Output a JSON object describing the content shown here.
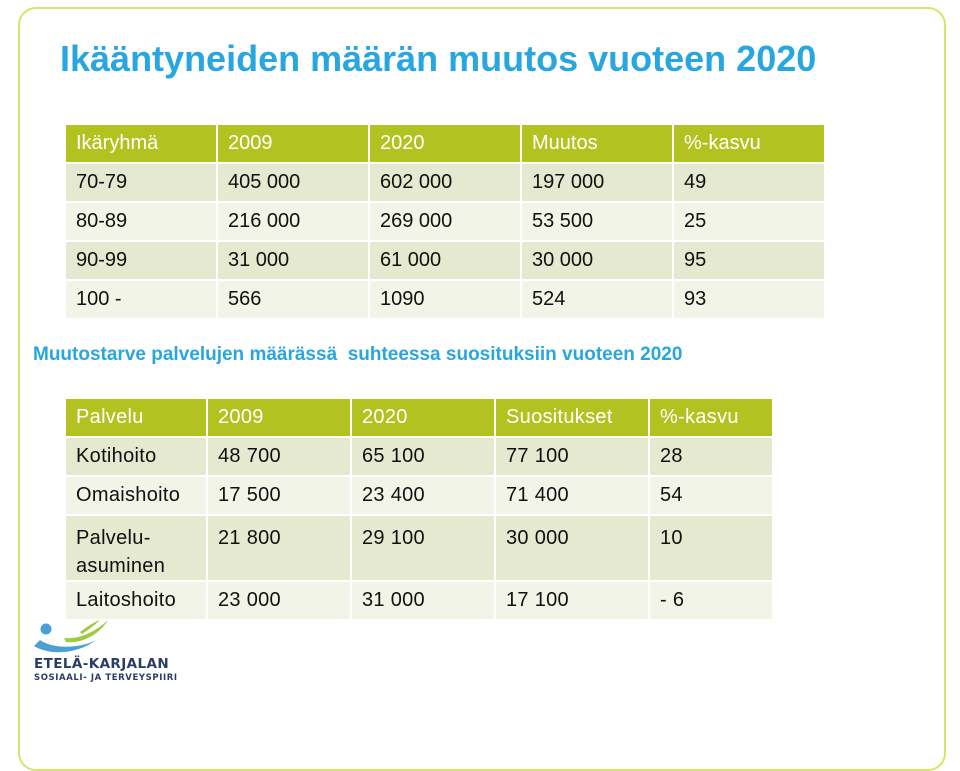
{
  "title": "Ikääntyneiden määrän muutos vuoteen 2020",
  "table1": {
    "headers": [
      "Ikäryhmä",
      "2009",
      "2020",
      "Muutos",
      "%-kasvu"
    ],
    "rows": [
      [
        "70-79",
        "405 000",
        "602 000",
        "197 000",
        "49"
      ],
      [
        "80-89",
        "216 000",
        "269 000",
        "53 500",
        "25"
      ],
      [
        "90-99",
        "31 000",
        "61 000",
        "30 000",
        "95"
      ],
      [
        "100 -",
        "566",
        "1090",
        "524",
        "93"
      ]
    ]
  },
  "subheading": "Muutostarve palvelujen määrässä  suhteessa suosituksiin vuoteen 2020",
  "table2": {
    "headers": [
      "Palvelu",
      "2009",
      "2020",
      "Suositukset",
      "%-kasvu"
    ],
    "rows": [
      [
        "Kotihoito",
        "48 700",
        "65 100",
        "77 100",
        "28"
      ],
      [
        "Omaishoito",
        "17 500",
        "23 400",
        "71 400",
        "54"
      ],
      [
        "Palvelu-",
        "21 800",
        "29 100",
        "30 000",
        "10"
      ],
      [
        "Laitoshoito",
        "23 000",
        "31 000",
        "17 100",
        "- 6"
      ]
    ],
    "row3_label_line2": "asuminen"
  },
  "logo": {
    "line1": "ETELÄ-KARJALAN",
    "line2": "SOSIAALI- JA TERVEYSPIIRI",
    "colors": {
      "blue": "#4a9fd4",
      "green": "#9ccc3c",
      "navy": "#2a3e63"
    }
  }
}
